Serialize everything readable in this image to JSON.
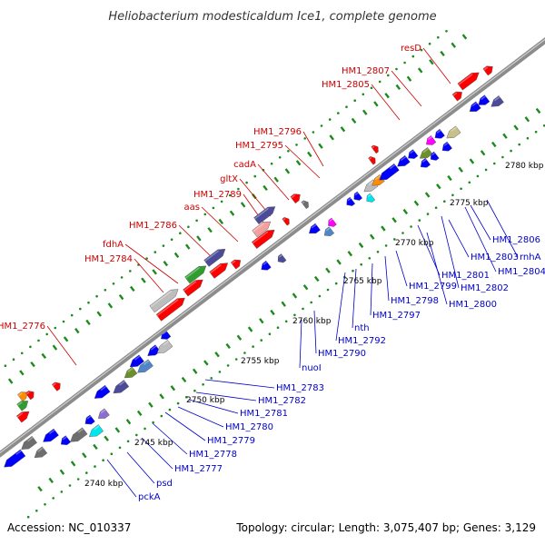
{
  "title": "Heliobacterium modesticaldum Ice1, complete genome",
  "footer": {
    "accession": "Accession: NC_010337",
    "summary": "Topology: circular; Length: 3,075,407 bp; Genes: 3,129"
  },
  "colors": {
    "backbone": "#8c8c8c",
    "tick": "#1d8a1d",
    "forward_label": "#cc0000",
    "reverse_label": "#0000cc",
    "forward_gene": "#ff0000",
    "reverse_gene": "#0000ff",
    "grey_gene": "#bdbdbd",
    "dark_grey_gene": "#6e6e6e",
    "slate_gene": "#4b4b9a",
    "green_gene": "#2f9e2f",
    "olive_gene": "#6b8f2a",
    "orange_gene": "#ff8c00",
    "pink_gene": "#ff00ff",
    "light_pink_gene": "#f4a0a0",
    "cyan_gene": "#00e5ee",
    "steelblue_gene": "#4f86c6",
    "tan_gene": "#c8c08a",
    "purple_gene": "#8b6fcf"
  },
  "kbp_labels": [
    "2740 kbp",
    "2745 kbp",
    "2750 kbp",
    "2755 kbp",
    "2760 kbp",
    "2765 kbp",
    "2770 kbp",
    "2775 kbp",
    "2780 kbp"
  ],
  "forward_labels": [
    "HM1_2776",
    "HM1_2784",
    "fdhA",
    "HM1_2786",
    "aas",
    "HM1_2789",
    "gltX",
    "cadA",
    "HM1_2795",
    "HM1_2796",
    "HM1_2805",
    "HM1_2807",
    "resD"
  ],
  "reverse_labels": [
    "pckA",
    "psd",
    "HM1_2777",
    "HM1_2778",
    "HM1_2779",
    "HM1_2780",
    "HM1_2781",
    "HM1_2782",
    "HM1_2783",
    "nuoI",
    "HM1_2790",
    "HM1_2792",
    "nth",
    "HM1_2797",
    "HM1_2798",
    "HM1_2799",
    "HM1_2800",
    "HM1_2801",
    "HM1_2802",
    "HM1_2803",
    "HM1_2804",
    "HM1_2806",
    "rnhA"
  ]
}
